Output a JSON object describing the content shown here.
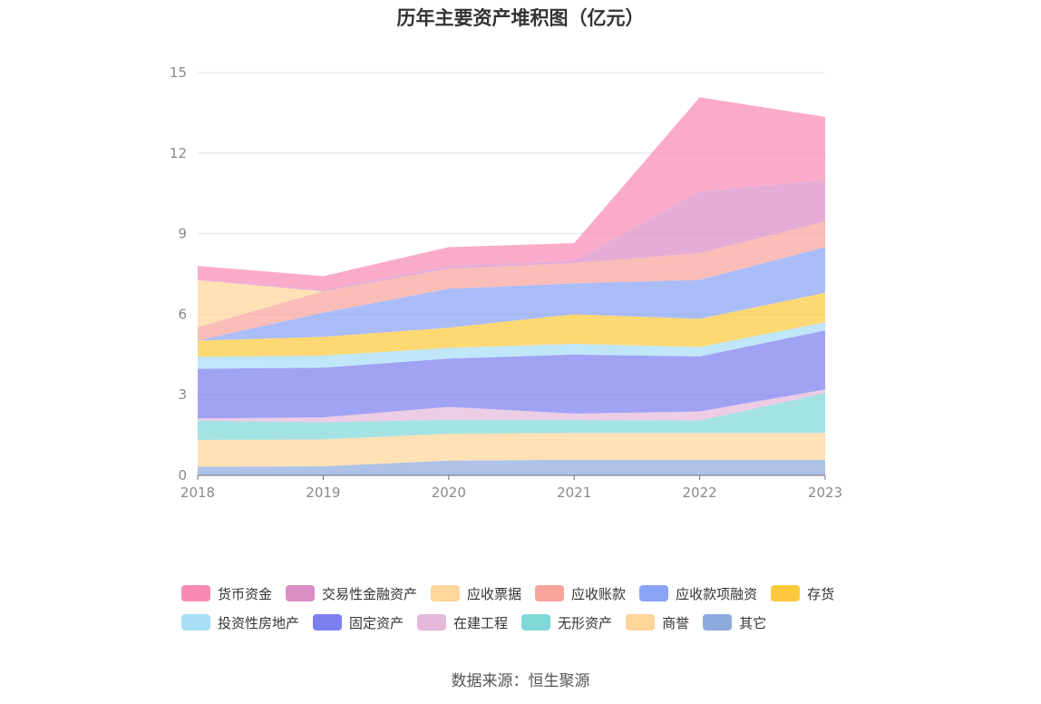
{
  "chart_data": {
    "type": "area",
    "stacked": true,
    "title": "历年主要资产堆积图（亿元）",
    "x": [
      "2018",
      "2019",
      "2020",
      "2021",
      "2022",
      "2023"
    ],
    "ylim": [
      0,
      15
    ],
    "yticks": [
      0,
      3,
      6,
      9,
      12,
      15
    ],
    "xlabel": "",
    "ylabel": "",
    "grid": true,
    "legend_position": "bottom",
    "series": [
      {
        "name": "其它",
        "color": "#8eaadc",
        "values": [
          0.32,
          0.34,
          0.55,
          0.58,
          0.58,
          0.58
        ]
      },
      {
        "name": "商誉",
        "color": "#ffd59a",
        "values": [
          1.0,
          1.0,
          1.0,
          1.0,
          1.0,
          1.0
        ]
      },
      {
        "name": "无形资产",
        "color": "#81d8d8",
        "values": [
          0.72,
          0.64,
          0.52,
          0.48,
          0.46,
          1.48
        ]
      },
      {
        "name": "在建工程",
        "color": "#e6b8dc",
        "values": [
          0.08,
          0.18,
          0.48,
          0.24,
          0.34,
          0.14
        ]
      },
      {
        "name": "固定资产",
        "color": "#7b7ff0",
        "values": [
          1.85,
          1.85,
          1.8,
          2.2,
          2.05,
          2.2
        ]
      },
      {
        "name": "投资性房地产",
        "color": "#a8def6",
        "values": [
          0.45,
          0.45,
          0.4,
          0.4,
          0.35,
          0.3
        ]
      },
      {
        "name": "存货",
        "color": "#fcc93d",
        "values": [
          0.6,
          0.7,
          0.75,
          1.1,
          1.05,
          1.1
        ]
      },
      {
        "name": "应收款项融资",
        "color": "#8aa4f7",
        "values": [
          0.0,
          0.9,
          1.45,
          1.15,
          1.45,
          1.7
        ]
      },
      {
        "name": "应收账款",
        "color": "#f8a39b",
        "values": [
          0.5,
          0.8,
          0.75,
          0.75,
          1.0,
          0.95
        ]
      },
      {
        "name": "应收票据",
        "color": "#ffd59a",
        "values": [
          1.75,
          0.0,
          0.0,
          0.0,
          0.0,
          0.0
        ]
      },
      {
        "name": "交易性金融资产",
        "color": "#db8ec6",
        "values": [
          0.0,
          0.06,
          0.1,
          0.1,
          2.3,
          1.55
        ]
      },
      {
        "name": "货币资金",
        "color": "#f98ab6",
        "values": [
          0.53,
          0.5,
          0.7,
          0.65,
          3.5,
          2.35
        ]
      }
    ]
  },
  "legend_rows": [
    [
      "货币资金",
      "交易性金融资产",
      "应收票据",
      "应收账款",
      "应收款项融资",
      "存货"
    ],
    [
      "投资性房地产",
      "固定资产",
      "在建工程",
      "无形资产",
      "商誉",
      "其它"
    ]
  ],
  "source": "数据来源：恒生聚源"
}
